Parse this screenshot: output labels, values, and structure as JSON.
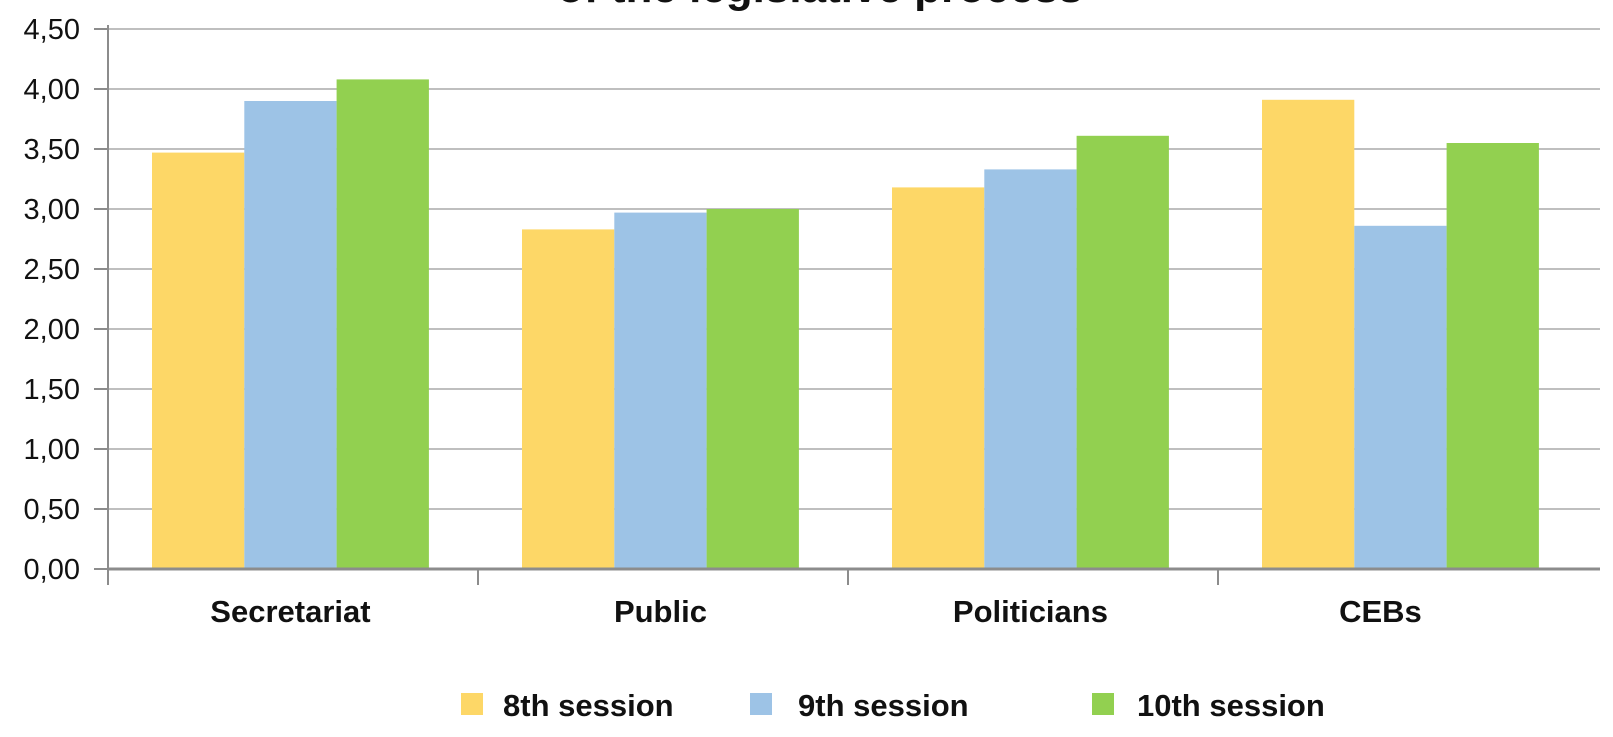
{
  "chart_data": {
    "type": "bar",
    "title": "of the legislative process",
    "categories": [
      "Secretariat",
      "Public",
      "Politicians",
      "CEBs"
    ],
    "series": [
      {
        "name": "8th session",
        "color": "#FDD767",
        "values": [
          3.47,
          2.83,
          3.18,
          3.91
        ]
      },
      {
        "name": "9th session",
        "color": "#9DC3E6",
        "values": [
          3.9,
          2.97,
          3.33,
          2.86
        ]
      },
      {
        "name": "10th session",
        "color": "#92D050",
        "values": [
          4.08,
          3.0,
          3.61,
          3.55
        ]
      }
    ],
    "y_ticks": [
      "0,00",
      "0,50",
      "1,00",
      "1,50",
      "2,00",
      "2,50",
      "3,00",
      "3,50",
      "4,00",
      "4,50"
    ],
    "ylim": [
      0,
      4.5
    ],
    "grid": true,
    "legend_position": "bottom"
  }
}
